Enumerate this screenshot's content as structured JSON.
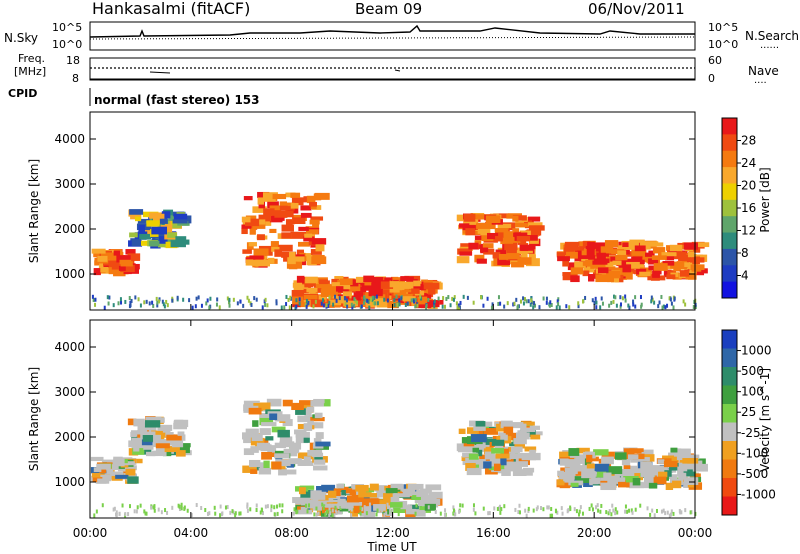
{
  "header": {
    "station": "Hankasalmi (fitACF)",
    "beam": "Beam 09",
    "date": "06/Nov/2011"
  },
  "noise_panel": {
    "left_label": "N.Sky",
    "right_label": "N.Search",
    "right_label_dots": "......",
    "ticks_left": [
      "10^5",
      "10^0"
    ],
    "ticks_right": [
      "10^5",
      "10^0"
    ]
  },
  "freq_panel": {
    "left_label_line1": "Freq.",
    "left_label_line2": "[MHz]",
    "right_label": "Nave",
    "right_label_dots": "....",
    "ticks_left": [
      "18",
      "8"
    ],
    "ticks_right": [
      "60",
      "0"
    ]
  },
  "cpid": {
    "label": "CPID",
    "value": "normal (fast stereo) 153"
  },
  "chart_data": [
    {
      "type": "heatmap",
      "name": "power",
      "ylabel": "Slant Range [km]",
      "xlabel": "",
      "ylim": [
        200,
        4600
      ],
      "yticks": [
        1000,
        2000,
        3000,
        4000
      ],
      "xlim_hours": [
        0,
        24
      ],
      "colorbar": {
        "label": "Power [dB]",
        "ticks": [
          "28",
          "24",
          "20",
          "16",
          "12",
          "8",
          "4"
        ],
        "colors": [
          "#e8181a",
          "#f04a12",
          "#f57a10",
          "#f9a82c",
          "#eed000",
          "#9ec13c",
          "#5fa56b",
          "#2e8c7c",
          "#2c55a8",
          "#1e3cc2",
          "#1212e0"
        ]
      },
      "echo_bands": [
        {
          "t": [
            0.0,
            1.5
          ],
          "range": [
            1000,
            1500
          ],
          "level": "high"
        },
        {
          "t": [
            1.5,
            3.5
          ],
          "range": [
            1600,
            2400
          ],
          "level": "mid"
        },
        {
          "t": [
            6.0,
            9.0
          ],
          "range": [
            1200,
            2800
          ],
          "level": "high"
        },
        {
          "t": [
            8.0,
            13.5
          ],
          "range": [
            300,
            900
          ],
          "level": "high"
        },
        {
          "t": [
            14.5,
            17.5
          ],
          "range": [
            1200,
            2300
          ],
          "level": "high"
        },
        {
          "t": [
            18.5,
            24.0
          ],
          "range": [
            900,
            1700
          ],
          "level": "high"
        }
      ]
    },
    {
      "type": "heatmap",
      "name": "velocity",
      "ylabel": "Slant Range [km]",
      "xlabel": "Time UT",
      "ylim": [
        200,
        4600
      ],
      "yticks": [
        1000,
        2000,
        3000,
        4000
      ],
      "xticks": [
        "00:00",
        "04:00",
        "08:00",
        "12:00",
        "16:00",
        "20:00",
        "00:00"
      ],
      "colorbar": {
        "label": "Velocity [m s^-1]",
        "ticks": [
          "1000",
          "500",
          "100",
          "25",
          "-25",
          "-100",
          "-500",
          "-1000"
        ],
        "colors": [
          "#1a3fbf",
          "#2f67a8",
          "#2e8c6a",
          "#3f9f3f",
          "#7ad04a",
          "#c0c0c0",
          "#f0a020",
          "#f07a10",
          "#f04a10",
          "#e81818"
        ]
      }
    }
  ]
}
